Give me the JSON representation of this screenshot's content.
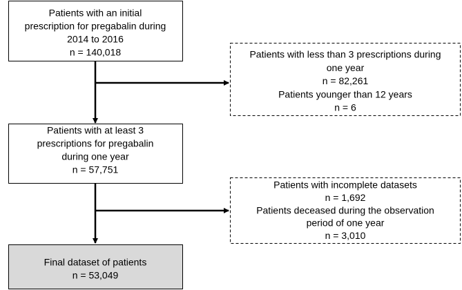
{
  "nodes": [
    {
      "lines": [
        "Patients with an initial",
        "prescription for pregabalin during",
        "2014 to 2016",
        "n = 140,018"
      ]
    },
    {
      "lines": [
        "Patients with less than 3 prescriptions during",
        "one year",
        "n = 82,261",
        "Patients younger than 12 years",
        "n = 6"
      ]
    },
    {
      "lines": [
        "Patients with at least 3",
        "prescriptions for pregabalin",
        "during one year",
        "n = 57,751"
      ]
    },
    {
      "lines": [
        "Patients with incomplete datasets",
        "n = 1,692",
        "Patients deceased during the observation",
        "period of one year",
        "n = 3,010"
      ]
    },
    {
      "lines": [
        "Final dataset of patients",
        "n = 53,049"
      ]
    }
  ]
}
